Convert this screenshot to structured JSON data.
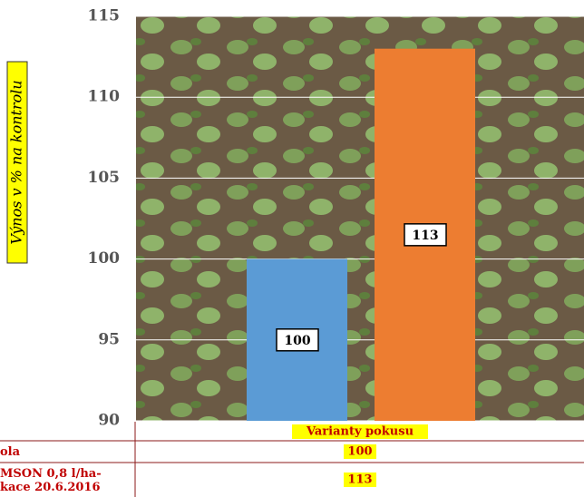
{
  "chart_data": {
    "type": "bar",
    "y_label": "Výnos v % na kontrolu",
    "x_label": "Varianty pokusu",
    "categories": [
      "ola",
      "MSON 0,8 l/ha-\nkace 20.6.2016"
    ],
    "values": [
      100,
      113
    ],
    "colors": [
      "#5b9bd5",
      "#ed7d31"
    ],
    "ylim": [
      90,
      115
    ],
    "yticks": [
      90,
      95,
      100,
      105,
      110,
      115
    ],
    "grid": true
  }
}
